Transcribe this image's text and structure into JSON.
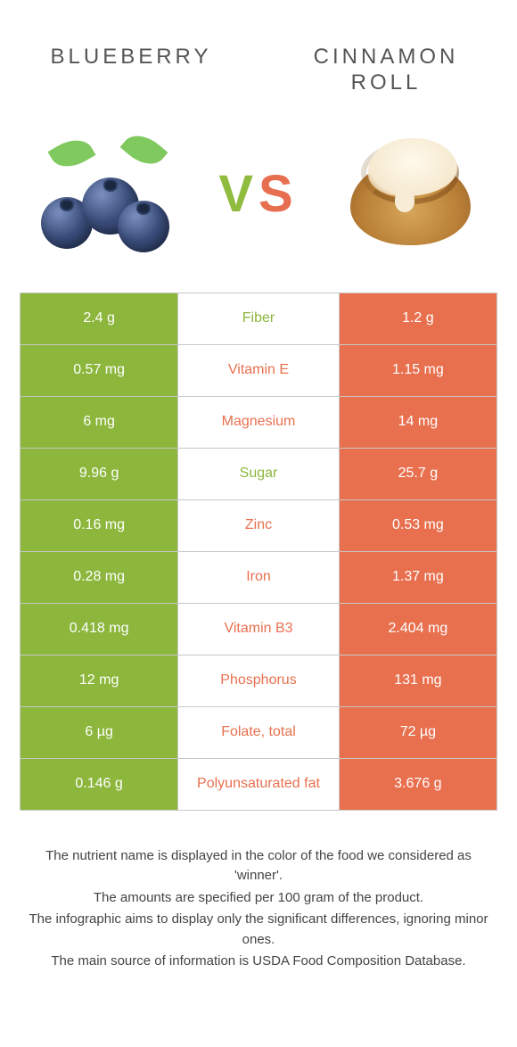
{
  "header": {
    "left_title": "Blueberry",
    "right_title": "Cinnamon roll",
    "vs_v": "V",
    "vs_s": "S"
  },
  "colors": {
    "left_food": "#8cb63c",
    "right_food": "#e8704f",
    "row_border": "#c7c7c7",
    "background": "#ffffff",
    "heading_text": "#555555"
  },
  "typography": {
    "heading_fontsize": 24,
    "heading_letterspacing": 4,
    "vs_fontsize": 58,
    "cell_fontsize": 16,
    "footer_fontsize": 15
  },
  "table": {
    "rows": [
      {
        "label": "Fiber",
        "left": "2.4 g",
        "right": "1.2 g",
        "winner": "left"
      },
      {
        "label": "Vitamin E",
        "left": "0.57 mg",
        "right": "1.15 mg",
        "winner": "right"
      },
      {
        "label": "Magnesium",
        "left": "6 mg",
        "right": "14 mg",
        "winner": "right"
      },
      {
        "label": "Sugar",
        "left": "9.96 g",
        "right": "25.7 g",
        "winner": "left"
      },
      {
        "label": "Zinc",
        "left": "0.16 mg",
        "right": "0.53 mg",
        "winner": "right"
      },
      {
        "label": "Iron",
        "left": "0.28 mg",
        "right": "1.37 mg",
        "winner": "right"
      },
      {
        "label": "Vitamin B3",
        "left": "0.418 mg",
        "right": "2.404 mg",
        "winner": "right"
      },
      {
        "label": "Phosphorus",
        "left": "12 mg",
        "right": "131 mg",
        "winner": "right"
      },
      {
        "label": "Folate, total",
        "left": "6 µg",
        "right": "72 µg",
        "winner": "right"
      },
      {
        "label": "Polyunsaturated fat",
        "left": "0.146 g",
        "right": "3.676 g",
        "winner": "right"
      }
    ]
  },
  "footer": {
    "line1": "The nutrient name is displayed in the color of the food we considered as 'winner'.",
    "line2": "The amounts are specified per 100 gram of the product.",
    "line3": "The infographic aims to display only the significant differences, ignoring minor ones.",
    "line4": "The main source of information is USDA Food Composition Database."
  }
}
